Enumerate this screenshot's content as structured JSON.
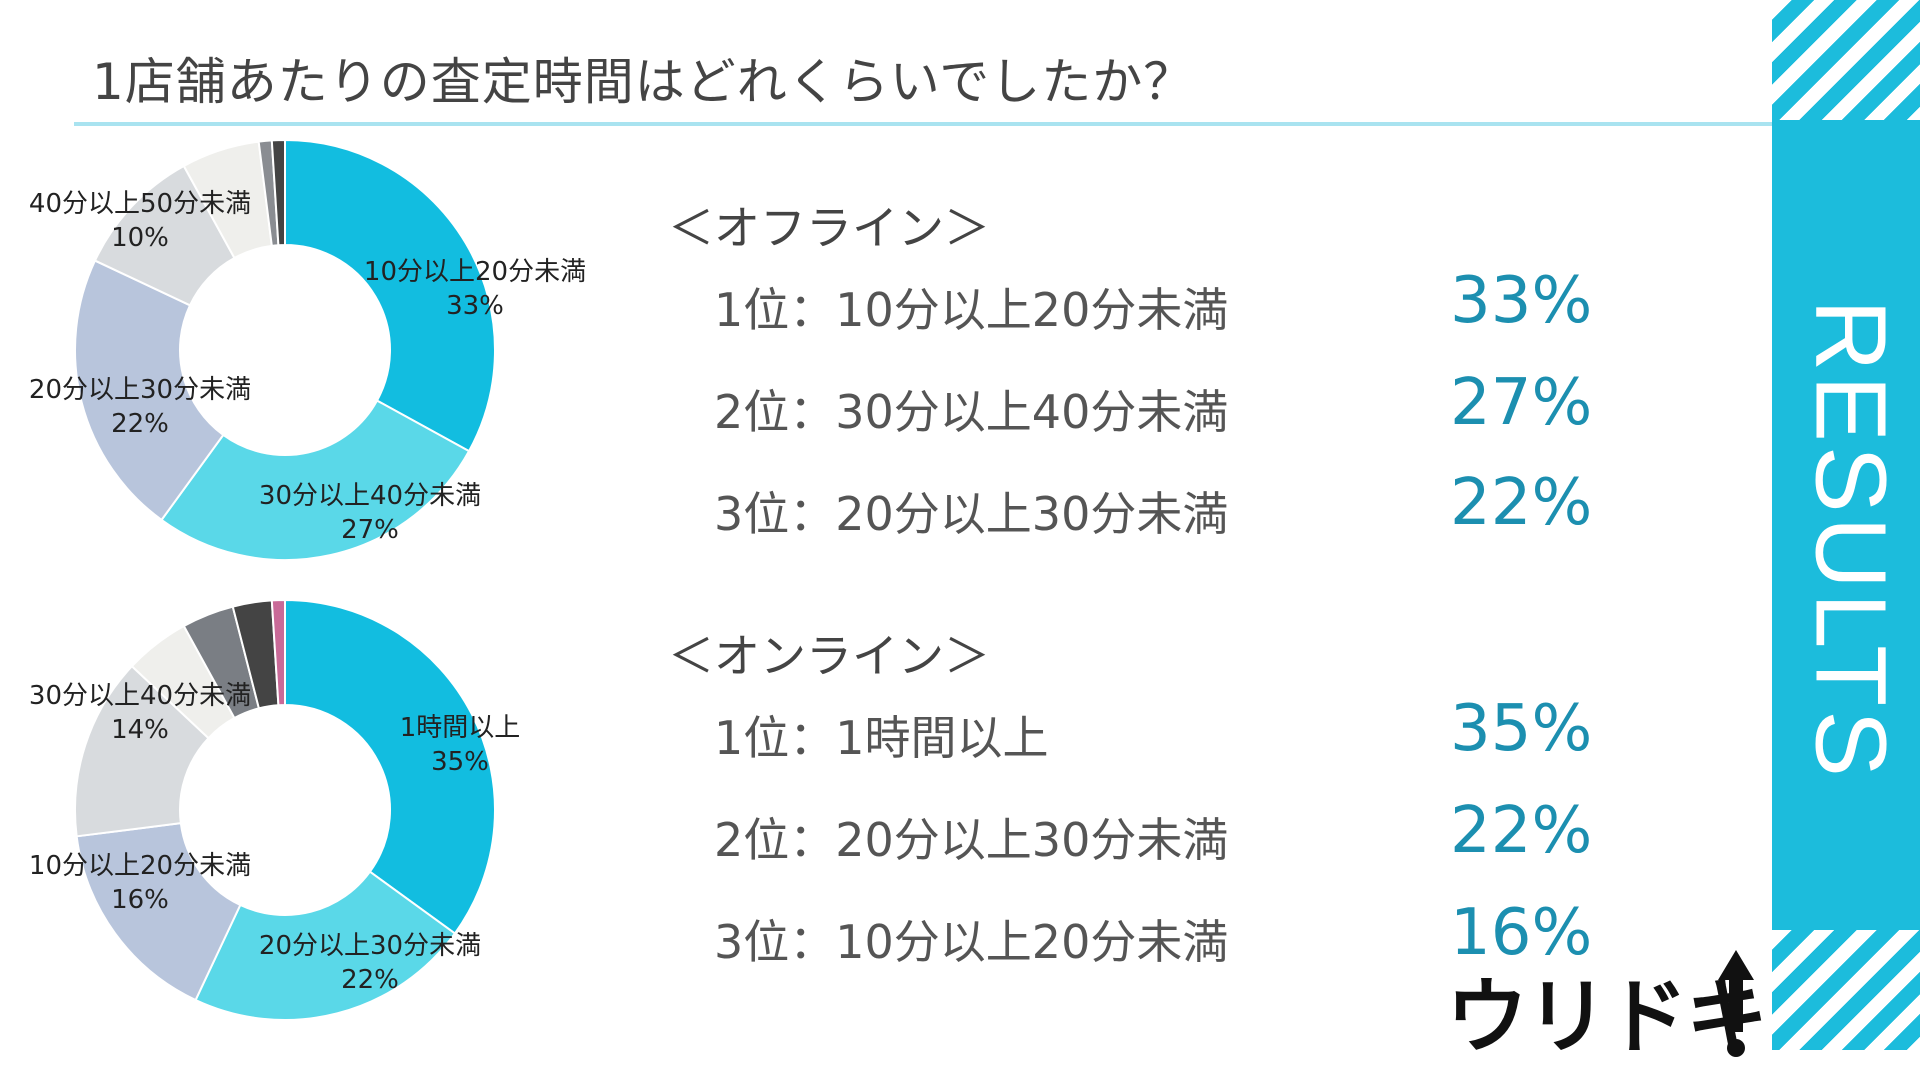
{
  "title": "1店舗あたりの査定時間はどれくらいでしたか？",
  "side_label": "RESULTS",
  "logo_text": "ウリドキ",
  "colors": {
    "accent": "#1cbcdc",
    "rule": "#a9e3f0",
    "value_text": "#1c8fb0"
  },
  "offline": {
    "heading": "＜オフライン＞",
    "ranks": [
      {
        "label": "1位：10分以上20分未満",
        "value": "33%"
      },
      {
        "label": "2位：30分以上40分未満",
        "value": "27%"
      },
      {
        "label": "3位：20分以上30分未満",
        "value": "22%"
      }
    ]
  },
  "online": {
    "heading": "＜オンライン＞",
    "ranks": [
      {
        "label": "1位：1時間以上",
        "value": "35%"
      },
      {
        "label": "2位：20分以上30分未満",
        "value": "22%"
      },
      {
        "label": "3位：10分以上20分未満",
        "value": "16%"
      }
    ]
  },
  "chart_data": [
    {
      "type": "pie",
      "donut": true,
      "name": "オフライン",
      "slices": [
        {
          "label": "10分以上20分未満",
          "value": 33,
          "value_label": "33%",
          "color": "#12bde0",
          "show_label": true
        },
        {
          "label": "30分以上40分未満",
          "value": 27,
          "value_label": "27%",
          "color": "#5ad8e8",
          "show_label": true
        },
        {
          "label": "20分以上30分未満",
          "value": 22,
          "value_label": "22%",
          "color": "#b8c5dc",
          "show_label": true
        },
        {
          "label": "40分以上50分未満",
          "value": 10,
          "value_label": "10%",
          "color": "#d8dbde",
          "show_label": true
        },
        {
          "label": "",
          "value": 6,
          "value_label": "",
          "color": "#efefec",
          "show_label": false
        },
        {
          "label": "",
          "value": 1,
          "value_label": "",
          "color": "#8a8d92",
          "show_label": false
        },
        {
          "label": "",
          "value": 1,
          "value_label": "",
          "color": "#444444",
          "show_label": false
        }
      ]
    },
    {
      "type": "pie",
      "donut": true,
      "name": "オンライン",
      "slices": [
        {
          "label": "1時間以上",
          "value": 35,
          "value_label": "35%",
          "color": "#12bde0",
          "show_label": true
        },
        {
          "label": "20分以上30分未満",
          "value": 22,
          "value_label": "22%",
          "color": "#5ad8e8",
          "show_label": true
        },
        {
          "label": "10分以上20分未満",
          "value": 16,
          "value_label": "16%",
          "color": "#b8c5dc",
          "show_label": true
        },
        {
          "label": "30分以上40分未満",
          "value": 14,
          "value_label": "14%",
          "color": "#d8dbde",
          "show_label": true
        },
        {
          "label": "",
          "value": 5,
          "value_label": "",
          "color": "#efefec",
          "show_label": false
        },
        {
          "label": "",
          "value": 4,
          "value_label": "",
          "color": "#7a7e84",
          "show_label": false
        },
        {
          "label": "",
          "value": 3,
          "value_label": "",
          "color": "#444444",
          "show_label": false
        },
        {
          "label": "",
          "value": 1,
          "value_label": "",
          "color": "#c96a98",
          "show_label": false
        }
      ]
    }
  ]
}
